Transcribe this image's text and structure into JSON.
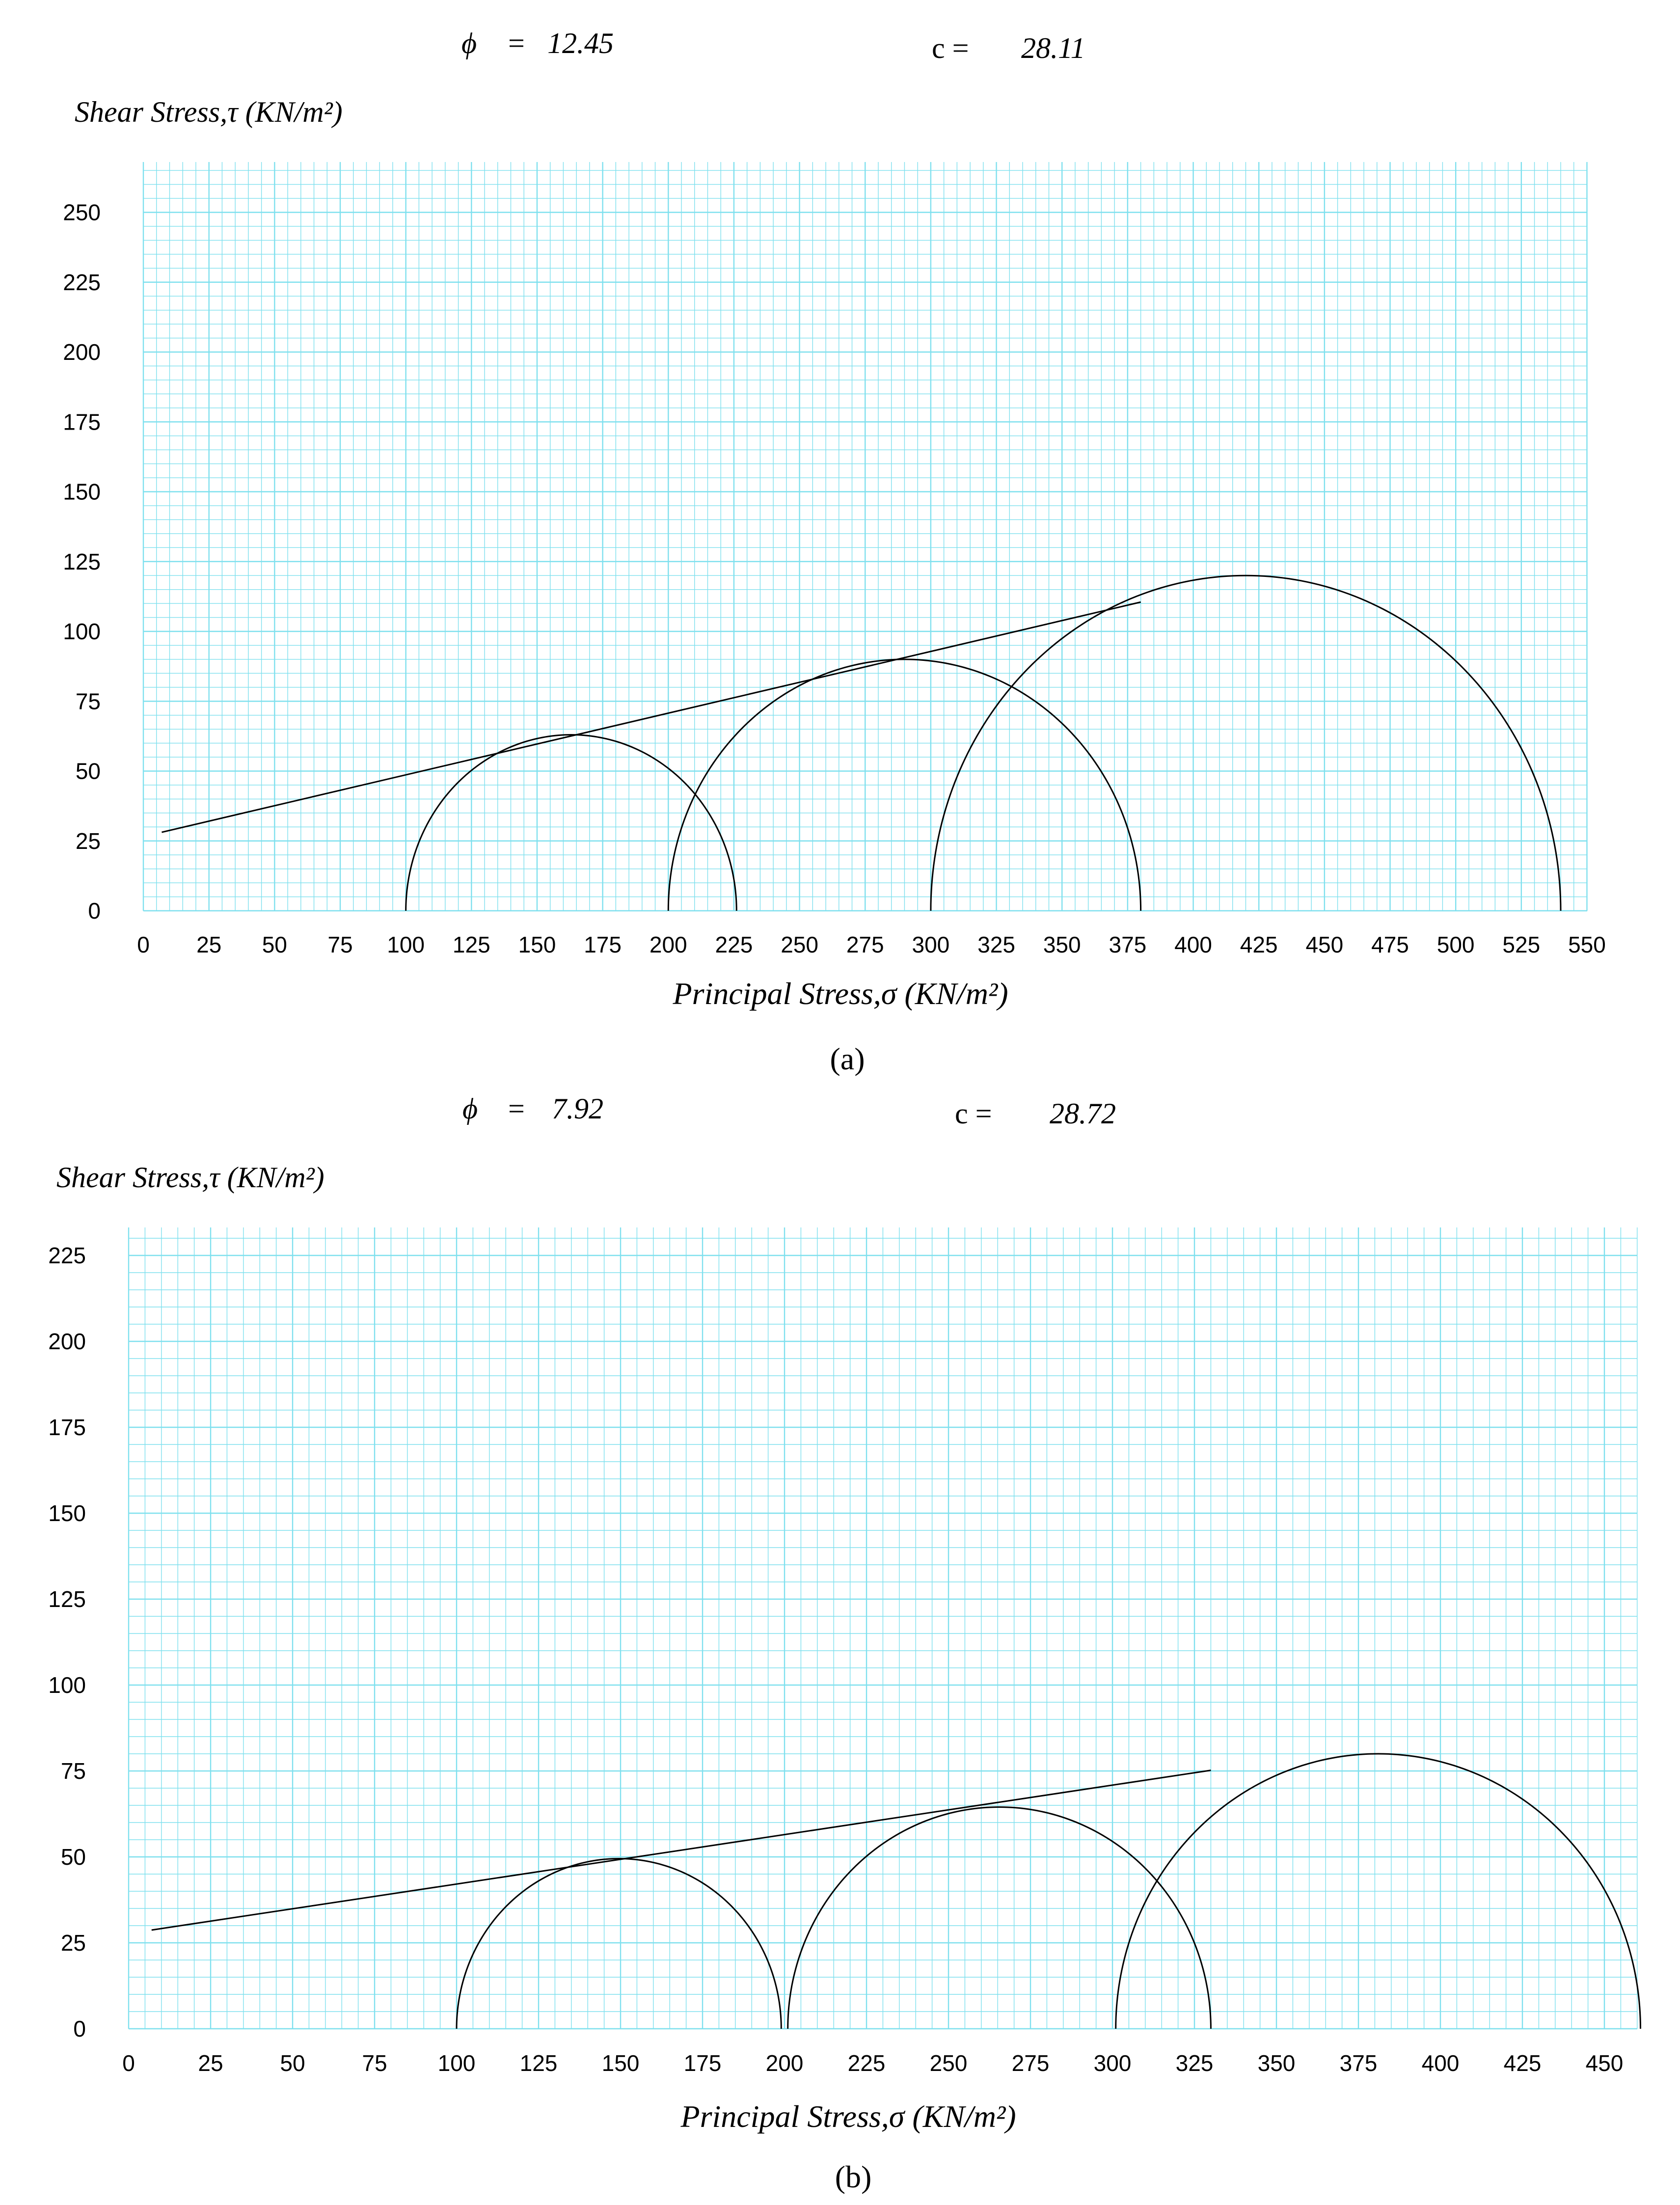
{
  "panel_labels": [
    "(a)",
    "(b)"
  ],
  "chart_data": [
    {
      "type": "line",
      "subtype": "mohr-circles",
      "panel_label": "(a)",
      "header": {
        "phi_symbol": "ϕ",
        "equals": "=",
        "phi_value": "12.45",
        "c_label": "c =",
        "c_value": "28.11"
      },
      "ylabel": "Shear Stress,τ (KN/m²)",
      "xlabel": "Principal Stress,σ (KN/m²)",
      "xlim": [
        0,
        550
      ],
      "ylim": [
        0,
        250
      ],
      "x_ticks": [
        0,
        25,
        50,
        75,
        100,
        125,
        150,
        175,
        200,
        225,
        250,
        275,
        300,
        325,
        350,
        375,
        400,
        425,
        450,
        475,
        500,
        525,
        550
      ],
      "y_ticks": [
        0,
        25,
        50,
        75,
        100,
        125,
        150,
        175,
        200,
        225,
        250
      ],
      "grid": true,
      "grid_color": "#7fe0ee",
      "mohr_circles": [
        {
          "sigma3": 100,
          "sigma1": 226
        },
        {
          "sigma3": 200,
          "sigma1": 380
        },
        {
          "sigma3": 300,
          "sigma1": 540
        }
      ],
      "failure_envelope": {
        "x": [
          7,
          380
        ],
        "y": [
          28.11,
          110.5
        ]
      }
    },
    {
      "type": "line",
      "subtype": "mohr-circles",
      "panel_label": "(b)",
      "header": {
        "phi_symbol": "ϕ",
        "equals": "=",
        "phi_value": "7.92",
        "c_label": "c =",
        "c_value": "28.72"
      },
      "ylabel": "Shear Stress,τ (KN/m²)",
      "xlabel": "Principal Stress,σ (KN/m²)",
      "xlim": [
        0,
        460
      ],
      "ylim": [
        0,
        225
      ],
      "x_ticks": [
        0,
        25,
        50,
        75,
        100,
        125,
        150,
        175,
        200,
        225,
        250,
        275,
        300,
        325,
        350,
        375,
        400,
        425,
        450
      ],
      "y_ticks": [
        0,
        25,
        50,
        75,
        100,
        125,
        150,
        175,
        200,
        225
      ],
      "grid": true,
      "grid_color": "#7fe0ee",
      "mohr_circles": [
        {
          "sigma3": 100,
          "sigma1": 199
        },
        {
          "sigma3": 201,
          "sigma1": 330
        },
        {
          "sigma3": 301,
          "sigma1": 461
        }
      ],
      "failure_envelope": {
        "x": [
          7,
          330
        ],
        "y": [
          28.72,
          75.2
        ]
      }
    }
  ]
}
